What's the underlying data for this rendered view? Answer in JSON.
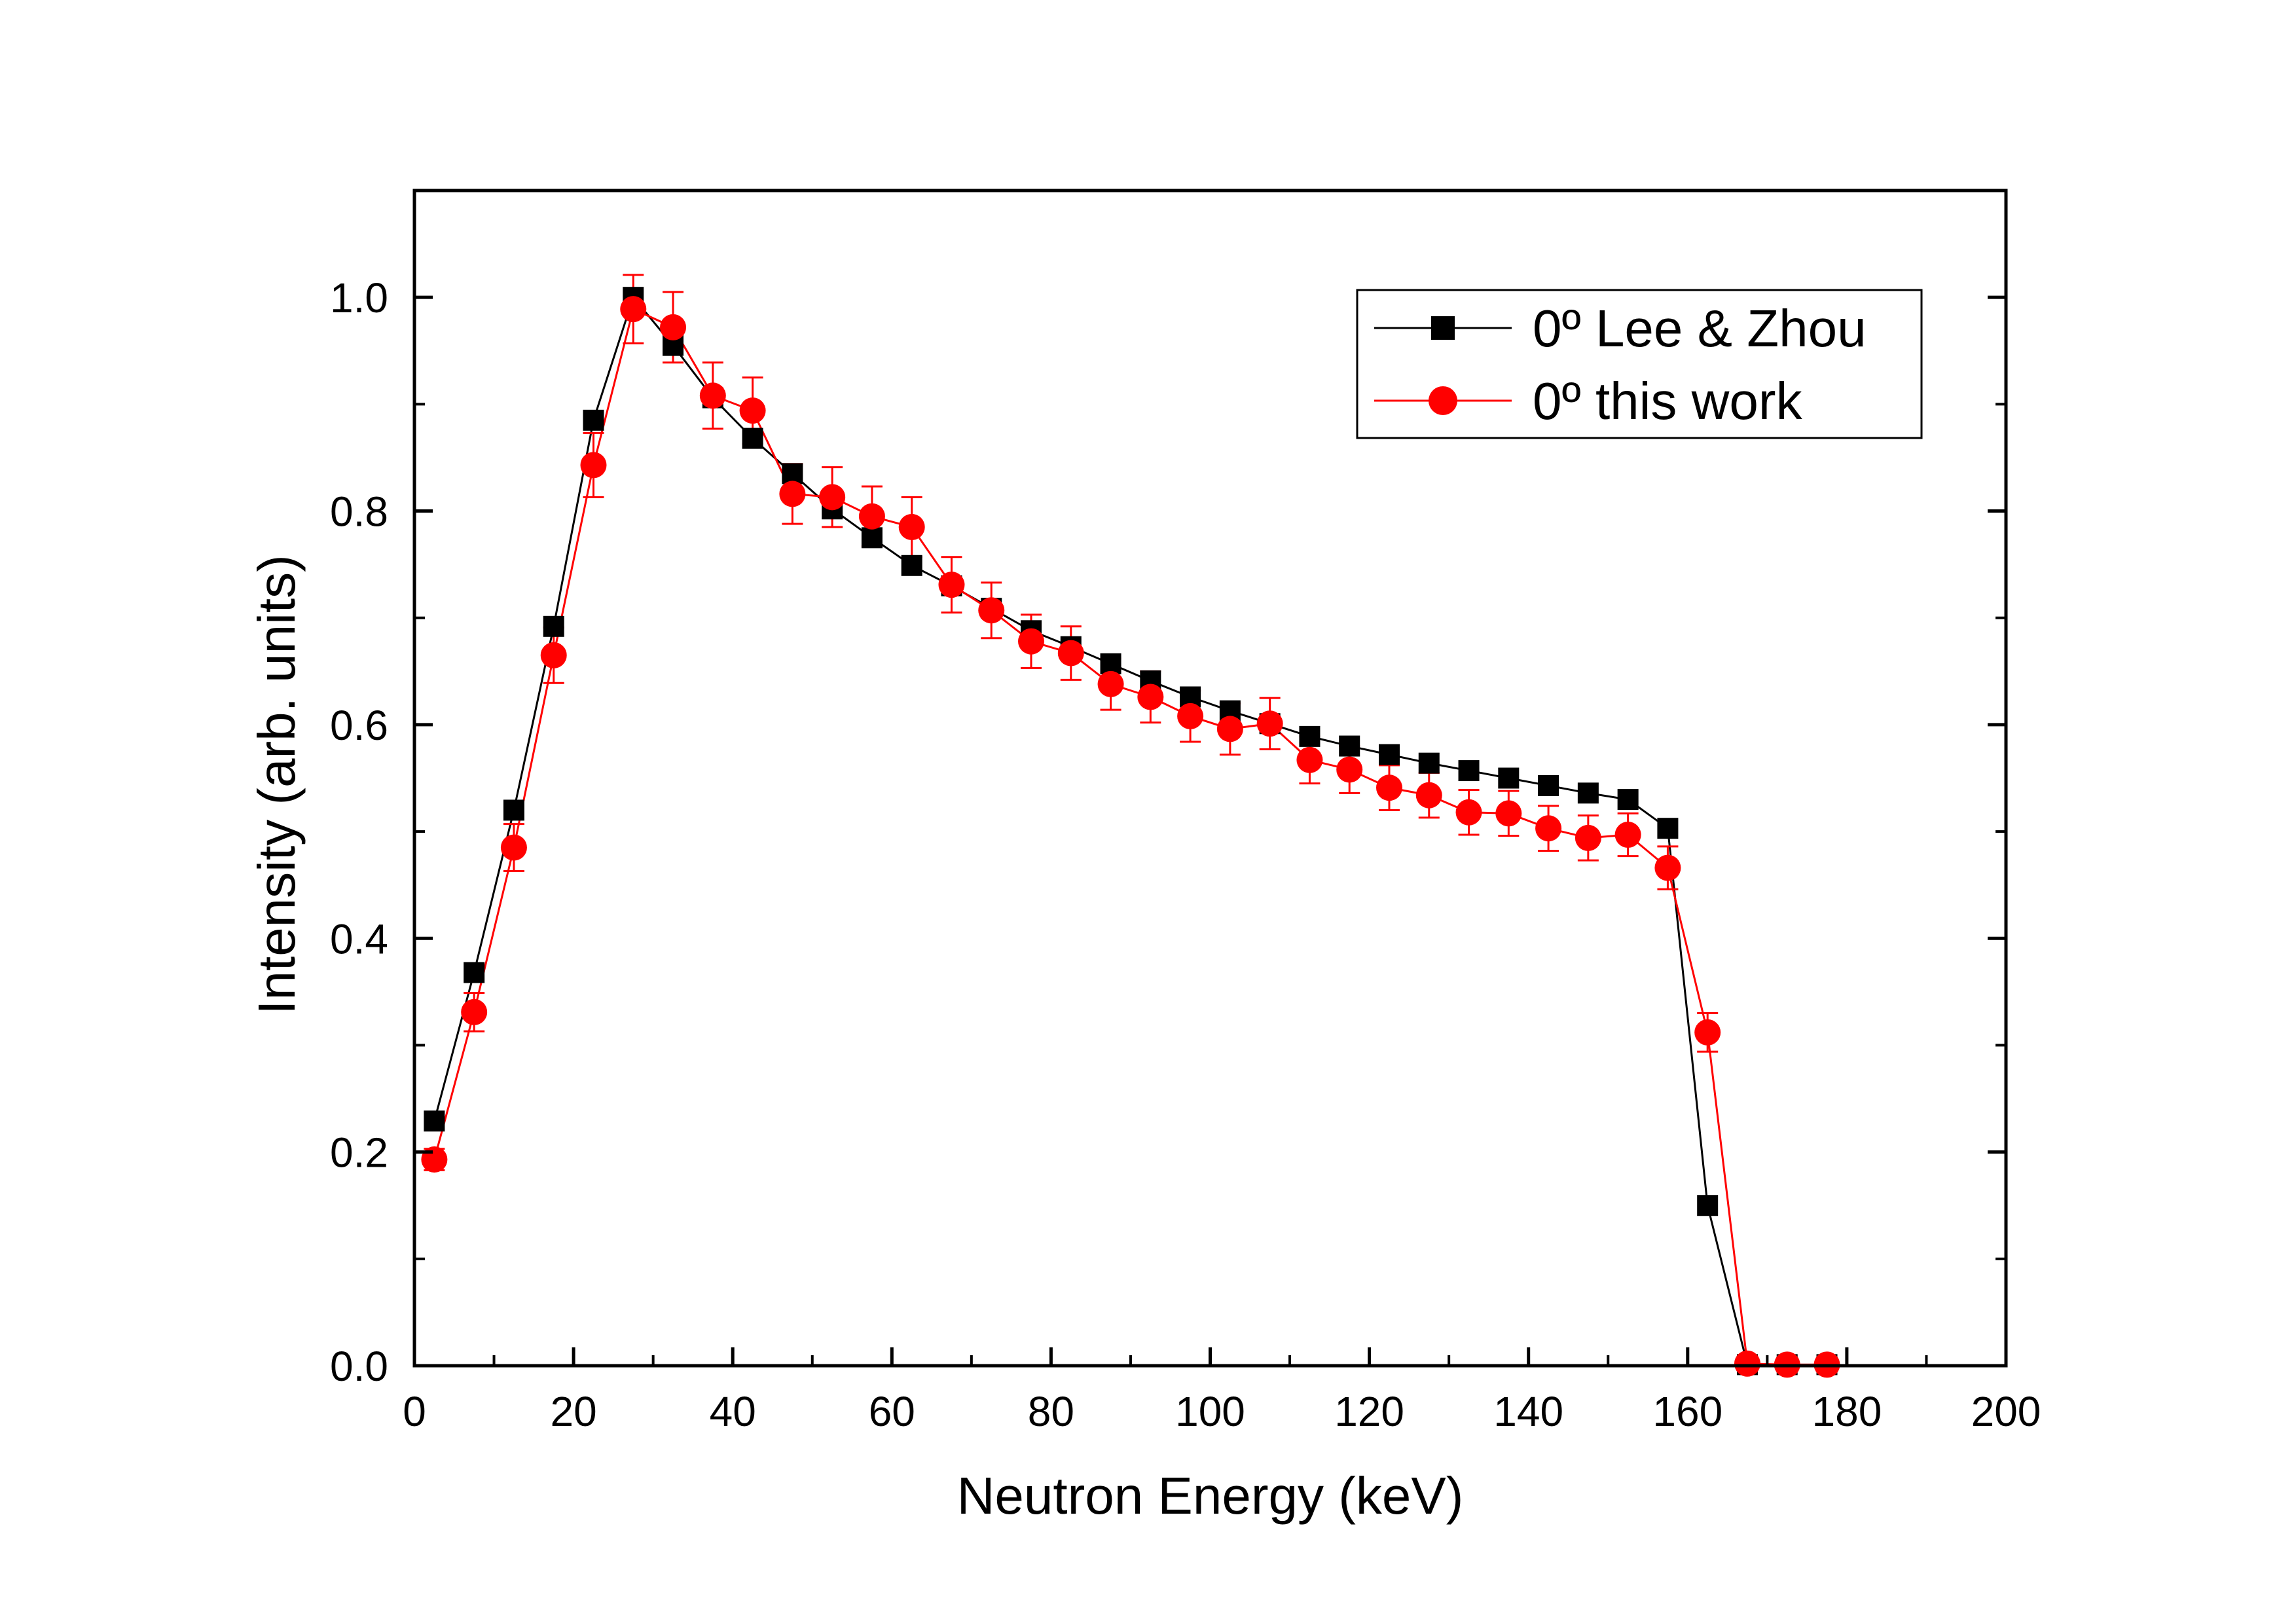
{
  "chart_data": {
    "type": "scatter",
    "xlabel": "Neutron Energy (keV)",
    "ylabel": "Intensity (arb. units)",
    "xlim": [
      0,
      200
    ],
    "ylim": [
      0,
      1.1
    ],
    "x_ticks": [
      "0",
      "20",
      "40",
      "60",
      "80",
      "100",
      "120",
      "140",
      "160",
      "180",
      "200"
    ],
    "y_ticks": [
      "0.0",
      "0.2",
      "0.4",
      "0.6",
      "0.8",
      "1.0"
    ],
    "legend_position": "top-right",
    "series": [
      {
        "name": "0º Lee & Zhou",
        "color": "#000000",
        "marker": "square",
        "x": [
          2.5,
          7.5,
          12.5,
          17.5,
          22.5,
          27.5,
          32.5,
          37.5,
          42.5,
          47.5,
          52.5,
          57.5,
          62.5,
          67.5,
          72.5,
          77.5,
          82.5,
          87.5,
          92.5,
          97.5,
          102.5,
          107.5,
          112.5,
          117.5,
          122.5,
          127.5,
          132.5,
          137.5,
          142.5,
          147.5,
          152.5,
          157.5,
          162.5,
          167.5,
          172.5,
          177.5
        ],
        "values": [
          0.229,
          0.368,
          0.52,
          0.692,
          0.885,
          1.0,
          0.955,
          0.906,
          0.868,
          0.835,
          0.802,
          0.775,
          0.749,
          0.73,
          0.709,
          0.688,
          0.673,
          0.657,
          0.641,
          0.626,
          0.613,
          0.601,
          0.589,
          0.58,
          0.572,
          0.564,
          0.557,
          0.55,
          0.543,
          0.536,
          0.53,
          0.503,
          0.15,
          0.001,
          0.001,
          0.001
        ]
      },
      {
        "name": "0º this work",
        "color": "#ff0000",
        "marker": "circle",
        "x": [
          2.5,
          7.5,
          12.5,
          17.5,
          22.5,
          27.5,
          32.5,
          37.5,
          42.5,
          47.5,
          52.5,
          57.5,
          62.5,
          67.5,
          72.5,
          77.5,
          82.5,
          87.5,
          92.5,
          97.5,
          102.5,
          107.5,
          112.5,
          117.5,
          122.5,
          127.5,
          132.5,
          137.5,
          142.5,
          147.5,
          152.5,
          157.5,
          162.5,
          167.5,
          172.5,
          177.5
        ],
        "values": [
          0.193,
          0.331,
          0.485,
          0.665,
          0.843,
          0.989,
          0.972,
          0.908,
          0.894,
          0.816,
          0.813,
          0.795,
          0.785,
          0.731,
          0.707,
          0.678,
          0.667,
          0.638,
          0.626,
          0.608,
          0.596,
          0.601,
          0.567,
          0.558,
          0.541,
          0.534,
          0.518,
          0.517,
          0.503,
          0.494,
          0.497,
          0.466,
          0.312,
          0.002,
          0.001,
          0.001
        ],
        "errors": [
          0.01,
          0.018,
          0.022,
          0.026,
          0.03,
          0.032,
          0.033,
          0.031,
          0.031,
          0.028,
          0.028,
          0.028,
          0.028,
          0.026,
          0.026,
          0.025,
          0.025,
          0.024,
          0.024,
          0.024,
          0.024,
          0.024,
          0.022,
          0.022,
          0.021,
          0.021,
          0.021,
          0.021,
          0.021,
          0.021,
          0.02,
          0.02,
          0.018,
          0.002,
          0.001,
          0.001
        ]
      }
    ]
  }
}
